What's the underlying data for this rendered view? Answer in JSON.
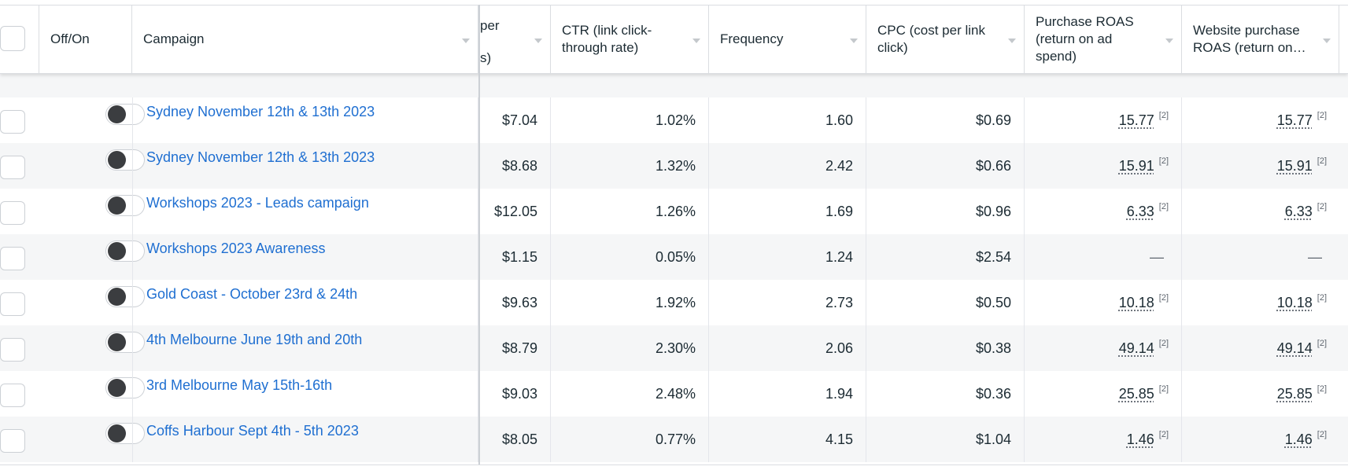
{
  "columns": {
    "off_on": "Off/On",
    "campaign": "Campaign",
    "cost_partial_top": "per",
    "cost_partial_bottom": "s)",
    "ctr": "CTR (link click-through rate)",
    "frequency": "Frequency",
    "cpc": "CPC (cost per link click)",
    "purchase_roas": "Purchase ROAS (return on ad spend)",
    "website_roas": "Website purchase ROAS (return on…"
  },
  "rows": [
    {
      "campaign": "Sydney November 12th & 13th 2023",
      "cost": "$7.04",
      "ctr": "1.02%",
      "frequency": "1.60",
      "cpc": "$0.69",
      "purchase_roas": "15.77",
      "purchase_fn": "[2]",
      "website_roas": "15.77",
      "website_fn": "[2]"
    },
    {
      "campaign": "Sydney November 12th & 13th 2023",
      "cost": "$8.68",
      "ctr": "1.32%",
      "frequency": "2.42",
      "cpc": "$0.66",
      "purchase_roas": "15.91",
      "purchase_fn": "[2]",
      "website_roas": "15.91",
      "website_fn": "[2]"
    },
    {
      "campaign": "Workshops 2023 - Leads campaign",
      "cost": "$12.05",
      "ctr": "1.26%",
      "frequency": "1.69",
      "cpc": "$0.96",
      "purchase_roas": "6.33",
      "purchase_fn": "[2]",
      "website_roas": "6.33",
      "website_fn": "[2]"
    },
    {
      "campaign": "Workshops 2023 Awareness",
      "cost": "$1.15",
      "ctr": "0.05%",
      "frequency": "1.24",
      "cpc": "$2.54",
      "purchase_roas": "—",
      "purchase_fn": "",
      "website_roas": "—",
      "website_fn": ""
    },
    {
      "campaign": "Gold Coast - October 23rd & 24th",
      "cost": "$9.63",
      "ctr": "1.92%",
      "frequency": "2.73",
      "cpc": "$0.50",
      "purchase_roas": "10.18",
      "purchase_fn": "[2]",
      "website_roas": "10.18",
      "website_fn": "[2]"
    },
    {
      "campaign": "4th Melbourne June 19th and 20th",
      "cost": "$8.79",
      "ctr": "2.30%",
      "frequency": "2.06",
      "cpc": "$0.38",
      "purchase_roas": "49.14",
      "purchase_fn": "[2]",
      "website_roas": "49.14",
      "website_fn": "[2]"
    },
    {
      "campaign": "3rd Melbourne May 15th-16th",
      "cost": "$9.03",
      "ctr": "2.48%",
      "frequency": "1.94",
      "cpc": "$0.36",
      "purchase_roas": "25.85",
      "purchase_fn": "[2]",
      "website_roas": "25.85",
      "website_fn": "[2]"
    },
    {
      "campaign": "Coffs Harbour Sept 4th - 5th 2023",
      "cost": "$8.05",
      "ctr": "0.77%",
      "frequency": "4.15",
      "cpc": "$1.04",
      "purchase_roas": "1.46",
      "purchase_fn": "[2]",
      "website_roas": "1.46",
      "website_fn": "[2]"
    }
  ]
}
